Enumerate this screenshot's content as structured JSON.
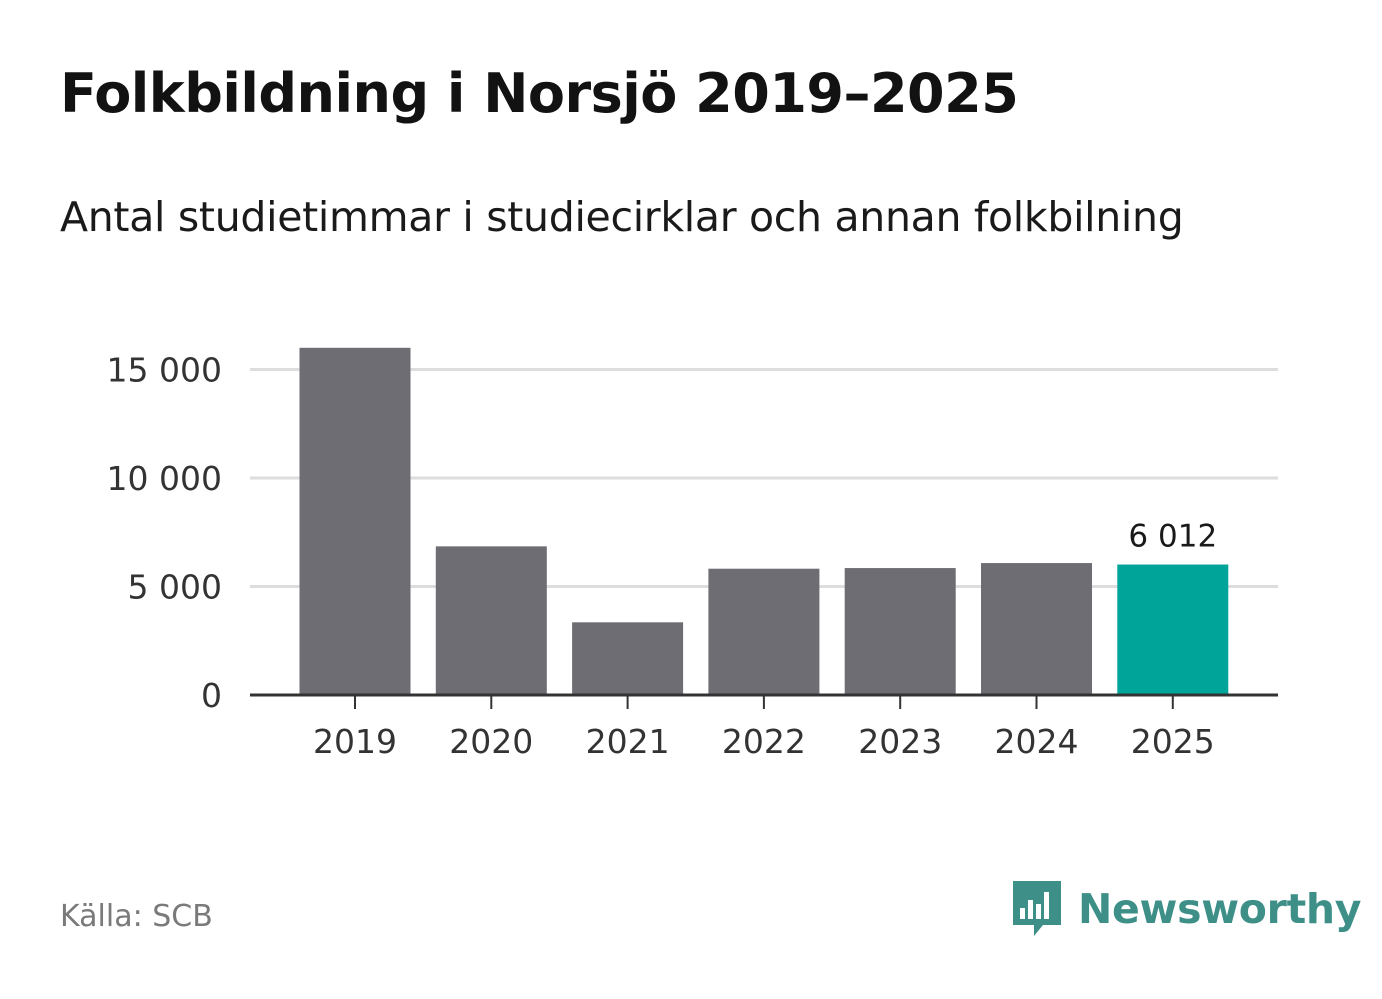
{
  "header": {
    "title": "Folkbildning i Norsjö 2019–2025",
    "subtitle": "Antal studietimmar i studiecirklar och annan folkbilning"
  },
  "chart_data": {
    "type": "bar",
    "title": "Folkbildning i Norsjö 2019–2025",
    "subtitle": "Antal studietimmar i studiecirklar och annan folkbilning",
    "categories": [
      "2019",
      "2020",
      "2021",
      "2022",
      "2023",
      "2024",
      "2025"
    ],
    "values": [
      16000,
      6850,
      3350,
      5820,
      5850,
      6080,
      6012
    ],
    "ylim": [
      0,
      17000
    ],
    "yticks": [
      0,
      5000,
      10000,
      15000
    ],
    "ytick_labels": [
      "0",
      "5 000",
      "10 000",
      "15 000"
    ],
    "xlabel": "",
    "ylabel": "",
    "grid": true,
    "highlight_index": 6,
    "highlight_label": "6 012",
    "colors": {
      "bar": "#6e6d73",
      "highlight": "#00a499",
      "grid": "#dddddd",
      "axis": "#333333"
    }
  },
  "footer": {
    "source": "Källa: SCB",
    "brand": "Newsworthy",
    "brand_icon": "newsworthy-logo-icon",
    "brand_color": "#3d8f88"
  }
}
